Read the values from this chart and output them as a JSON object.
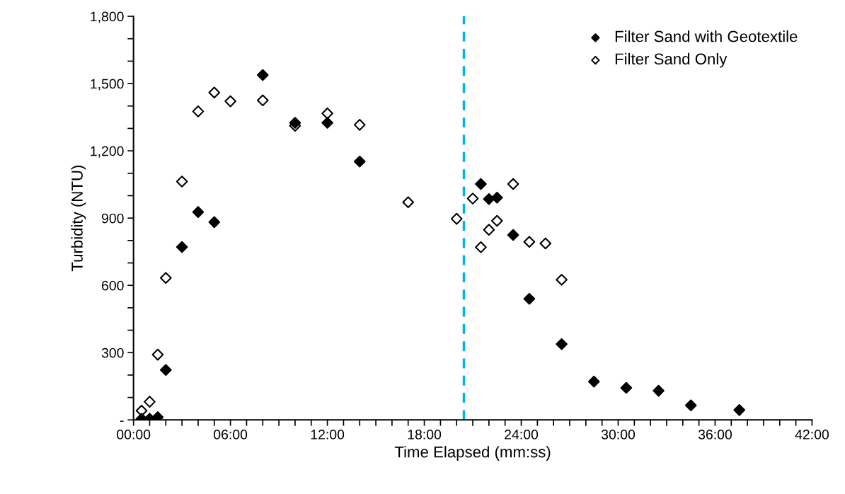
{
  "chart_data": {
    "type": "scatter",
    "xlabel": "Time Elapsed (mm:ss)",
    "ylabel": "Turbidity (NTU)",
    "series": [
      {
        "name": "Filter Sand with Geotextile",
        "color": "#000000",
        "x": [
          0.5,
          1,
          1.5,
          2,
          3,
          4,
          5,
          8,
          10,
          12,
          14,
          21.5,
          22,
          22.5,
          23.5,
          24.5,
          26.5,
          28.5,
          30.5,
          32.5,
          34.5,
          37.5
        ],
        "values": [
          5,
          5,
          12,
          223,
          771,
          927,
          882,
          1538,
          1325,
          1325,
          1152,
          1052,
          985,
          991,
          825,
          540,
          338,
          171,
          143,
          130,
          65,
          44
        ]
      },
      {
        "name": "Filter Sand Only",
        "color": "#ffffff",
        "x": [
          0.5,
          1,
          1.5,
          2,
          3,
          4,
          5,
          6,
          8,
          10,
          12,
          14,
          17,
          20,
          21,
          21.5,
          22,
          22.5,
          23.5,
          24.5,
          25.5,
          26.5
        ],
        "values": [
          41,
          81,
          291,
          633,
          1063,
          1376,
          1460,
          1421,
          1425,
          1312,
          1367,
          1316,
          971,
          897,
          987,
          770,
          848,
          888,
          1052,
          794,
          787,
          625
        ]
      }
    ],
    "xlim": [
      0,
      42
    ],
    "xticks": [
      {
        "value": 0,
        "label": "00:00"
      },
      {
        "value": 1,
        "label": null
      },
      {
        "value": 2,
        "label": null
      },
      {
        "value": 3,
        "label": null
      },
      {
        "value": 4,
        "label": null
      },
      {
        "value": 5,
        "label": null
      },
      {
        "value": 6,
        "label": "06:00"
      },
      {
        "value": 7,
        "label": null
      },
      {
        "value": 8,
        "label": null
      },
      {
        "value": 9,
        "label": null
      },
      {
        "value": 10,
        "label": null
      },
      {
        "value": 11,
        "label": null
      },
      {
        "value": 12,
        "label": "12:00"
      },
      {
        "value": 13,
        "label": null
      },
      {
        "value": 14,
        "label": null
      },
      {
        "value": 15,
        "label": null
      },
      {
        "value": 16,
        "label": null
      },
      {
        "value": 17,
        "label": null
      },
      {
        "value": 18,
        "label": "18:00"
      },
      {
        "value": 19,
        "label": null
      },
      {
        "value": 20,
        "label": null
      },
      {
        "value": 21,
        "label": null
      },
      {
        "value": 22,
        "label": null
      },
      {
        "value": 23,
        "label": null
      },
      {
        "value": 24,
        "label": "24:00"
      },
      {
        "value": 25,
        "label": null
      },
      {
        "value": 26,
        "label": null
      },
      {
        "value": 27,
        "label": null
      },
      {
        "value": 28,
        "label": null
      },
      {
        "value": 29,
        "label": null
      },
      {
        "value": 30,
        "label": "30:00"
      },
      {
        "value": 31,
        "label": null
      },
      {
        "value": 32,
        "label": null
      },
      {
        "value": 33,
        "label": null
      },
      {
        "value": 34,
        "label": null
      },
      {
        "value": 35,
        "label": null
      },
      {
        "value": 36,
        "label": "36:00"
      },
      {
        "value": 37,
        "label": null
      },
      {
        "value": 38,
        "label": null
      },
      {
        "value": 39,
        "label": null
      },
      {
        "value": 40,
        "label": null
      },
      {
        "value": 41,
        "label": null
      },
      {
        "value": 42,
        "label": "42:00"
      }
    ],
    "ylim": [
      0,
      1800
    ],
    "yticks": [
      {
        "value": 0,
        "label": "-"
      },
      {
        "value": 100,
        "label": null
      },
      {
        "value": 200,
        "label": null
      },
      {
        "value": 300,
        "label": "300"
      },
      {
        "value": 400,
        "label": null
      },
      {
        "value": 500,
        "label": null
      },
      {
        "value": 600,
        "label": "600"
      },
      {
        "value": 700,
        "label": null
      },
      {
        "value": 800,
        "label": null
      },
      {
        "value": 900,
        "label": "900"
      },
      {
        "value": 1000,
        "label": null
      },
      {
        "value": 1100,
        "label": null
      },
      {
        "value": 1200,
        "label": "1,200"
      },
      {
        "value": 1300,
        "label": null
      },
      {
        "value": 1400,
        "label": null
      },
      {
        "value": 1500,
        "label": "1,500"
      },
      {
        "value": 1600,
        "label": null
      },
      {
        "value": 1700,
        "label": null
      },
      {
        "value": 1800,
        "label": "1,800"
      }
    ],
    "ref_lines": [
      {
        "axis": "x",
        "value": 20.45,
        "label": null,
        "color": "#00b0f0",
        "line_style": "dashed"
      }
    ],
    "marker": "diamond",
    "grid": false,
    "legend": "top right"
  }
}
